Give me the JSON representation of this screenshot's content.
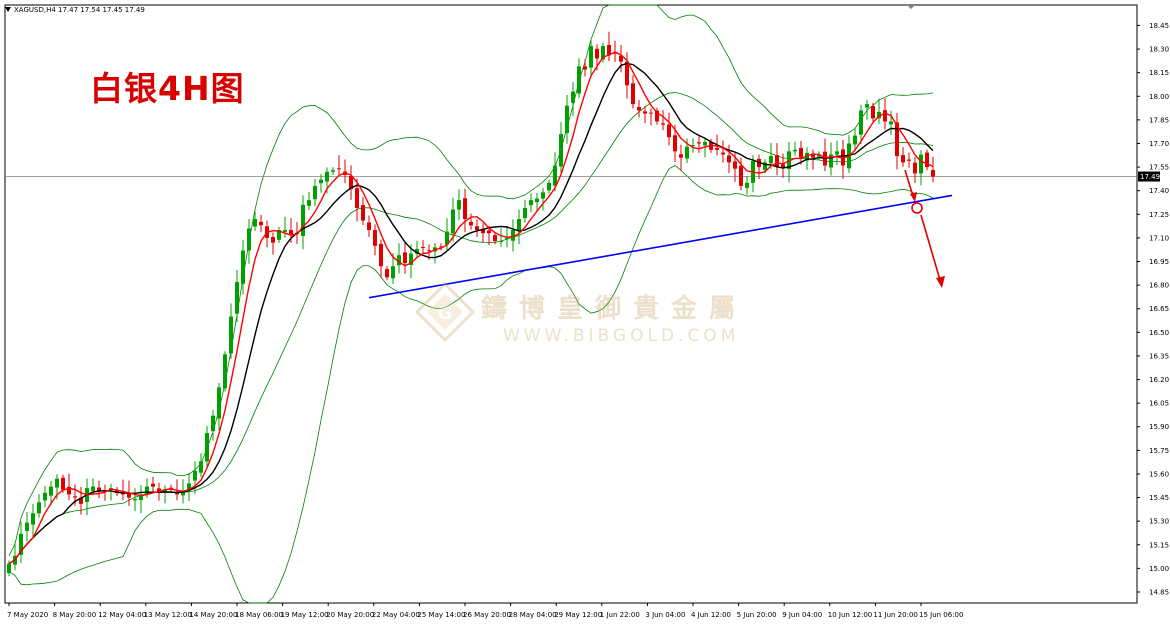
{
  "header": {
    "text": "XAGUSD,H4  17.47 17.54 17.45 17.49"
  },
  "big_title": "白银4H图",
  "watermark": {
    "cn": "鑄博皇御貴金屬",
    "en": "WWW.BIBGOLD.COM"
  },
  "current_price_label": "17.49",
  "colors": {
    "bull_candle": "#00a000",
    "bear_candle": "#e00000",
    "bollinger": "#008000",
    "fast_ma": "#ff0000",
    "slow_ma": "#000000",
    "trendline": "#0000ff",
    "arrow": "#e00000",
    "price_line": "#808080",
    "price_label_bg": "#000000"
  },
  "chart_data": {
    "type": "candlestick",
    "symbol": "XAGUSD",
    "timeframe": "H4",
    "ylim": [
      14.78,
      18.58
    ],
    "yticks": [
      "18.45",
      "18.30",
      "18.15",
      "18.00",
      "17.85",
      "17.70",
      "17.55",
      "17.40",
      "17.25",
      "17.10",
      "16.95",
      "16.80",
      "16.65",
      "16.50",
      "16.35",
      "16.20",
      "16.05",
      "15.90",
      "15.75",
      "15.60",
      "15.45",
      "15.30",
      "15.15",
      "15.00",
      "14.85"
    ],
    "xticks": [
      "7 May 2020",
      "8 May 20:00",
      "12 May 04:00",
      "13 May 12:00",
      "14 May 20:00",
      "18 May 06:00",
      "19 May 12:00",
      "20 May 20:00",
      "22 May 04:00",
      "25 May 14:00",
      "26 May 20:00",
      "28 May 04:00",
      "29 May 12:00",
      "1 Jun 22:00",
      "3 Jun 04:00",
      "4 Jun 12:00",
      "5 Jun 20:00",
      "9 Jun 04:00",
      "10 Jun 12:00",
      "11 Jun 20:00",
      "15 Jun 06:00"
    ],
    "closes": [
      15.03,
      15.08,
      15.22,
      15.29,
      15.35,
      15.42,
      15.48,
      15.52,
      15.57,
      15.5,
      15.47,
      15.45,
      15.41,
      15.51,
      15.52,
      15.49,
      15.49,
      15.51,
      15.48,
      15.47,
      15.45,
      15.44,
      15.47,
      15.52,
      15.52,
      15.49,
      15.5,
      15.5,
      15.47,
      15.49,
      15.54,
      15.62,
      15.68,
      15.86,
      15.97,
      16.15,
      16.36,
      16.6,
      16.82,
      17.02,
      17.16,
      17.22,
      17.18,
      17.1,
      17.07,
      17.15,
      17.15,
      17.12,
      17.13,
      17.31,
      17.34,
      17.43,
      17.47,
      17.52,
      17.53,
      17.54,
      17.5,
      17.41,
      17.29,
      17.21,
      17.15,
      17.05,
      16.92,
      16.85,
      16.92,
      16.99,
      16.94,
      17,
      17.03,
      17.04,
      17.02,
      17.04,
      17.04,
      17.14,
      17.28,
      17.34,
      17.22,
      17.18,
      17.15,
      17.13,
      17.13,
      17.08,
      17.08,
      17.1,
      17.15,
      17.22,
      17.29,
      17.34,
      17.35,
      17.39,
      17.45,
      17.56,
      17.76,
      17.94,
      18.03,
      18.19,
      18.17,
      18.32,
      18.24,
      18.32,
      18.26,
      18.27,
      18.22,
      18.07,
      17.95,
      17.91,
      17.89,
      17.89,
      17.84,
      17.82,
      17.74,
      17.65,
      17.61,
      17.68,
      17.69,
      17.7,
      17.71,
      17.66,
      17.66,
      17.63,
      17.58,
      17.54,
      17.43,
      17.45,
      17.59,
      17.55,
      17.58,
      17.62,
      17.55,
      17.55,
      17.65,
      17.66,
      17.61,
      17.64,
      17.61,
      17.63,
      17.56,
      17.63,
      17.65,
      17.56,
      17.7,
      17.75,
      17.91,
      17.95,
      17.86,
      17.9,
      17.84,
      17.84,
      17.62,
      17.58,
      17.59,
      17.51,
      17.63,
      17.55,
      17.49
    ],
    "moving_averages": [
      "fast MA (red)",
      "slow MA (black)"
    ],
    "indicators": [
      "Bollinger Bands (green)"
    ],
    "trendline": {
      "from": {
        "label": "22 May 04:00",
        "price": 16.72
      },
      "to": {
        "label": "15 Jun 06:00 +",
        "price": 17.37
      }
    },
    "current_price": 17.49,
    "annotation": "downward arrow indicating breakdown of rising trendline"
  }
}
